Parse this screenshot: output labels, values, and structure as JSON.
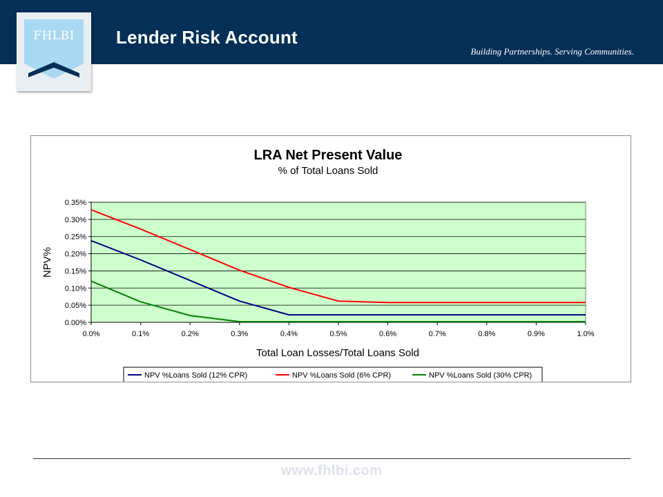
{
  "header": {
    "logo_text": "FHLBI",
    "title": "Lender Risk Account",
    "tagline": "Building Partnerships. Serving Communities.",
    "background_color": "#042f57",
    "logo_color": "#a9d8f2"
  },
  "footer": {
    "url": "www.fhlbi.com"
  },
  "chart_data": {
    "type": "line",
    "title": "LRA Net Present Value",
    "subtitle": "% of Total Loans Sold",
    "xlabel": "Total Loan Losses/Total Loans Sold",
    "ylabel": "NPV%",
    "x": [
      0.0,
      0.1,
      0.2,
      0.3,
      0.4,
      0.5,
      0.6,
      0.7,
      0.8,
      0.9,
      1.0
    ],
    "x_tick_labels": [
      "0.0%",
      "0.1%",
      "0.2%",
      "0.3%",
      "0.4%",
      "0.5%",
      "0.6%",
      "0.7%",
      "0.8%",
      "0.9%",
      "1.0%"
    ],
    "y_tick_labels": [
      "0.00%",
      "0.05%",
      "0.10%",
      "0.15%",
      "0.20%",
      "0.25%",
      "0.30%",
      "0.35%"
    ],
    "xlim": [
      0.0,
      1.0
    ],
    "ylim": [
      0.0,
      0.35
    ],
    "y_ticks": [
      0.0,
      0.05,
      0.1,
      0.15,
      0.2,
      0.25,
      0.3,
      0.35
    ],
    "grid": "horizontal",
    "plot_background": "#ccffcc",
    "legend_position": "bottom",
    "series": [
      {
        "name": "NPV %Loans Sold (12% CPR)",
        "color": "#000080",
        "values": [
          0.238,
          0.182,
          0.122,
          0.062,
          0.022,
          0.022,
          0.022,
          0.022,
          0.022,
          0.022,
          0.022
        ]
      },
      {
        "name": "NPV %Loans Sold (6% CPR)",
        "color": "#ff0000",
        "values": [
          0.328,
          0.272,
          0.212,
          0.152,
          0.102,
          0.062,
          0.058,
          0.058,
          0.058,
          0.058,
          0.058
        ]
      },
      {
        "name": "NPV %Loans Sold (30% CPR)",
        "color": "#008000",
        "values": [
          0.12,
          0.06,
          0.02,
          0.002,
          0.002,
          0.002,
          0.002,
          0.002,
          0.002,
          0.002,
          0.002
        ]
      }
    ]
  }
}
